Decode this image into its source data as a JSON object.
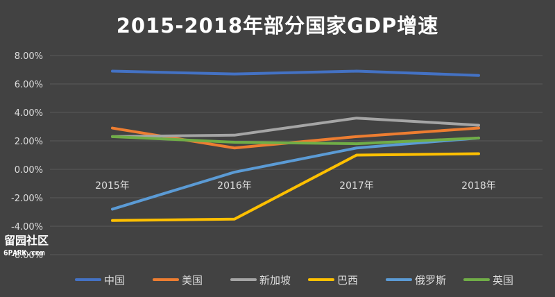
{
  "chart_data": {
    "type": "line",
    "title": "2015-2018年部分国家GDP增速",
    "categories": [
      "2015年",
      "2016年",
      "2017年",
      "2018年"
    ],
    "y_ticks": [
      "8.00%",
      "6.00%",
      "4.00%",
      "2.00%",
      "0.00%",
      "-2.00%",
      "-4.00%",
      "-6.00%"
    ],
    "ylim": [
      -6,
      8
    ],
    "grid": true,
    "legend_position": "bottom",
    "series": [
      {
        "name": "中国",
        "color": "#4472C4",
        "values": [
          6.9,
          6.7,
          6.9,
          6.6
        ]
      },
      {
        "name": "美国",
        "color": "#ED7D31",
        "values": [
          2.9,
          1.5,
          2.3,
          2.9
        ]
      },
      {
        "name": "新加坡",
        "color": "#A5A5A5",
        "values": [
          2.3,
          2.4,
          3.6,
          3.1
        ]
      },
      {
        "name": "巴西",
        "color": "#FFC000",
        "values": [
          -3.6,
          -3.5,
          1.0,
          1.1
        ]
      },
      {
        "name": "俄罗斯",
        "color": "#5B9BD5",
        "values": [
          -2.8,
          -0.2,
          1.5,
          2.2
        ]
      },
      {
        "name": "英国",
        "color": "#70AD47",
        "values": [
          2.3,
          1.9,
          1.8,
          2.2
        ]
      }
    ]
  },
  "watermark": {
    "line1": "留园社区",
    "line2": "6PARK.com"
  }
}
